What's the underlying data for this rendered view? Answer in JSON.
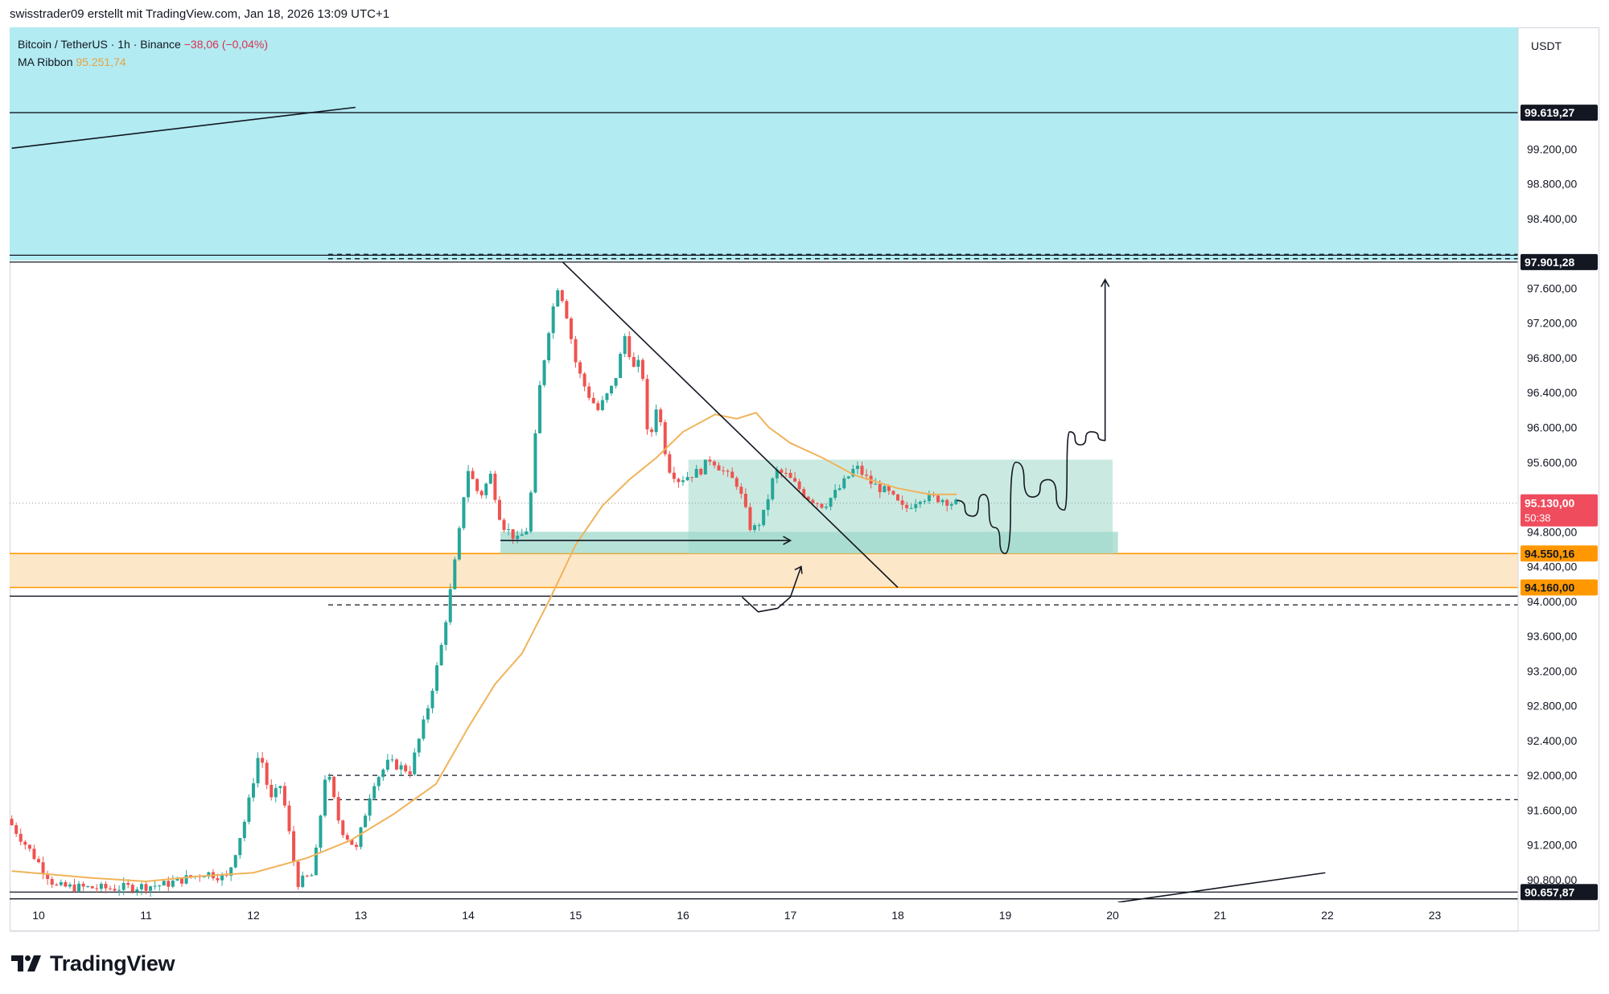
{
  "header": {
    "attribution": "swisstrader09 erstellt mit TradingView.com, Jan 18, 2026 13:09 UTC+1"
  },
  "legend": {
    "symbol": "Bitcoin / TetherUS · 1h · Binance",
    "change": "−38,06 (−0,04%)",
    "ma_label": "MA Ribbon",
    "ma_value": "95.251,74"
  },
  "currency": "USDT",
  "footer": {
    "brand": "TradingView",
    "brand_icon": "tradingview-logo-icon"
  },
  "colors": {
    "up": "#26a69a",
    "down": "#ef5350",
    "ma": "#f0b35a",
    "supply_zone": "#b2ebf2",
    "demand_zone": "#fde3bf",
    "range_box": "#bde5da",
    "last_price": "#ef4c5e",
    "zone_label": "#ff9800"
  },
  "chart_data": {
    "type": "candlestick",
    "ylim": [
      90540,
      100600
    ],
    "x_ticks": [
      "10",
      "11",
      "12",
      "13",
      "14",
      "15",
      "16",
      "17",
      "18",
      "19",
      "20",
      "21",
      "22",
      "23"
    ],
    "y_ticks": [
      "99.200,00",
      "98.800,00",
      "98.400,00",
      "97.600,00",
      "97.200,00",
      "96.800,00",
      "96.400,00",
      "96.000,00",
      "95.600,00",
      "94.800,00",
      "94.400,00",
      "94.000,00",
      "93.600,00",
      "93.200,00",
      "92.800,00",
      "92.400,00",
      "92.000,00",
      "91.600,00",
      "91.200,00",
      "90.800,00"
    ],
    "y_tick_values": [
      99200,
      98800,
      98400,
      97600,
      97200,
      96800,
      96400,
      96000,
      95600,
      94800,
      94400,
      94000,
      93600,
      93200,
      92800,
      92400,
      92000,
      91600,
      91200,
      90800
    ],
    "price_labels": [
      {
        "text": "99.619,27",
        "value": 99619.27,
        "style": "black"
      },
      {
        "text": "97.901,28",
        "value": 97901.28,
        "style": "black"
      },
      {
        "text": "94.550,16",
        "value": 94550.16,
        "style": "orange"
      },
      {
        "text": "94.160,00",
        "value": 94160.0,
        "style": "orange"
      },
      {
        "text": "90.657,87",
        "value": 90657.87,
        "style": "black"
      }
    ],
    "last_price": {
      "text": "95.130,00",
      "countdown": "50:38",
      "value": 95130
    },
    "anchors": [
      [
        9.75,
        91500
      ],
      [
        10.2,
        90720
      ],
      [
        10.7,
        90700
      ],
      [
        11.2,
        90740
      ],
      [
        11.6,
        90880
      ],
      [
        11.8,
        90820
      ],
      [
        11.97,
        91520
      ],
      [
        12.1,
        92300
      ],
      [
        12.2,
        91700
      ],
      [
        12.3,
        91900
      ],
      [
        12.45,
        90760
      ],
      [
        12.6,
        90860
      ],
      [
        12.72,
        92100
      ],
      [
        12.85,
        91400
      ],
      [
        13.0,
        91150
      ],
      [
        13.15,
        91900
      ],
      [
        13.3,
        92150
      ],
      [
        13.5,
        92050
      ],
      [
        13.65,
        92700
      ],
      [
        13.78,
        93400
      ],
      [
        13.9,
        94300
      ],
      [
        13.97,
        94900
      ],
      [
        14.03,
        95550
      ],
      [
        14.15,
        95200
      ],
      [
        14.25,
        95450
      ],
      [
        14.35,
        94900
      ],
      [
        14.5,
        94700
      ],
      [
        14.6,
        94850
      ],
      [
        14.7,
        96400
      ],
      [
        14.8,
        97200
      ],
      [
        14.88,
        97650
      ],
      [
        14.95,
        97350
      ],
      [
        15.05,
        96700
      ],
      [
        15.15,
        96400
      ],
      [
        15.25,
        96200
      ],
      [
        15.4,
        96500
      ],
      [
        15.5,
        97050
      ],
      [
        15.6,
        96600
      ],
      [
        15.65,
        96850
      ],
      [
        15.72,
        95750
      ],
      [
        15.8,
        96300
      ],
      [
        15.9,
        95550
      ],
      [
        16.0,
        95400
      ],
      [
        16.2,
        95500
      ],
      [
        16.3,
        95650
      ],
      [
        16.45,
        95450
      ],
      [
        16.55,
        95350
      ],
      [
        16.68,
        94800
      ],
      [
        16.78,
        94950
      ],
      [
        16.9,
        95500
      ],
      [
        17.0,
        95450
      ],
      [
        17.2,
        95200
      ],
      [
        17.35,
        95100
      ],
      [
        17.5,
        95300
      ],
      [
        17.65,
        95550
      ],
      [
        17.8,
        95350
      ],
      [
        17.95,
        95250
      ],
      [
        18.1,
        95050
      ],
      [
        18.25,
        95200
      ],
      [
        18.45,
        95180
      ],
      [
        18.55,
        95130
      ]
    ],
    "ma_ribbon": [
      [
        9.75,
        90900
      ],
      [
        10.5,
        90820
      ],
      [
        11.0,
        90780
      ],
      [
        11.5,
        90840
      ],
      [
        12.0,
        90880
      ],
      [
        12.5,
        91050
      ],
      [
        12.9,
        91250
      ],
      [
        13.3,
        91550
      ],
      [
        13.7,
        91900
      ],
      [
        14.0,
        92550
      ],
      [
        14.25,
        93050
      ],
      [
        14.5,
        93400
      ],
      [
        14.75,
        94000
      ],
      [
        15.0,
        94650
      ],
      [
        15.25,
        95100
      ],
      [
        15.5,
        95400
      ],
      [
        15.75,
        95650
      ],
      [
        16.0,
        95950
      ],
      [
        16.3,
        96150
      ],
      [
        16.5,
        96100
      ],
      [
        16.68,
        96170
      ],
      [
        16.8,
        96000
      ],
      [
        17.0,
        95820
      ],
      [
        17.3,
        95650
      ],
      [
        17.6,
        95450
      ],
      [
        18.0,
        95300
      ],
      [
        18.3,
        95230
      ],
      [
        18.55,
        95230
      ]
    ],
    "zones": {
      "supply": [
        97920,
        100600
      ],
      "demand": [
        94160,
        94550
      ],
      "range_box": {
        "x": [
          16.05,
          20.0
        ],
        "y": [
          94550,
          95630
        ]
      },
      "inner_box": {
        "x": [
          14.3,
          20.05
        ],
        "y": [
          94550,
          94800
        ]
      }
    },
    "horizontal_lines": {
      "solid": [
        99619.27,
        97980,
        97901.28,
        94060,
        90657.87,
        90580
      ],
      "dashed": [
        97990,
        97940,
        93960,
        92000,
        91720
      ]
    },
    "trend_lines": [
      [
        [
          9.75,
          99210
        ],
        [
          12.95,
          99680
        ]
      ],
      [
        [
          14.88,
          97901
        ],
        [
          18.0,
          94160
        ]
      ],
      [
        [
          20.05,
          90540
        ],
        [
          21.98,
          90880
        ]
      ]
    ],
    "arrows": [
      {
        "from": [
          14.3,
          94700
        ],
        "to": [
          17.0,
          94700
        ]
      }
    ],
    "projection": [
      [
        18.55,
        95160
      ],
      [
        18.7,
        94980
      ],
      [
        18.8,
        95230
      ],
      [
        18.9,
        94850
      ],
      [
        19.0,
        94550
      ],
      [
        19.1,
        95600
      ],
      [
        19.25,
        95200
      ],
      [
        19.4,
        95400
      ],
      [
        19.55,
        95050
      ],
      [
        19.6,
        95950
      ],
      [
        19.7,
        95800
      ],
      [
        19.8,
        95950
      ],
      [
        19.93,
        95850
      ],
      [
        19.93,
        97700
      ]
    ],
    "hook": [
      [
        16.55,
        94050
      ],
      [
        16.7,
        93880
      ],
      [
        16.88,
        93920
      ],
      [
        17.0,
        94050
      ],
      [
        17.1,
        94400
      ]
    ]
  }
}
